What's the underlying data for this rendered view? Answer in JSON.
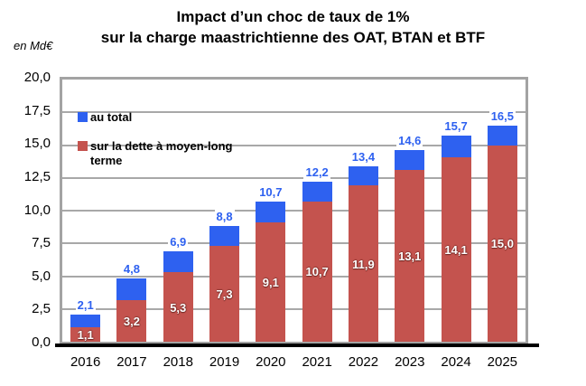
{
  "chart_data": {
    "type": "bar",
    "stacked": true,
    "title_lines": [
      "Impact d’un choc de taux de 1%",
      "sur la charge maastrichtienne des OAT, BTAN et BTF"
    ],
    "unit_label": "en Md€",
    "categories": [
      "2016",
      "2017",
      "2018",
      "2019",
      "2020",
      "2021",
      "2022",
      "2023",
      "2024",
      "2025"
    ],
    "series": [
      {
        "name": "au total",
        "role": "total",
        "color": "#2E61F0",
        "values": [
          2.1,
          4.8,
          6.9,
          8.8,
          10.7,
          12.2,
          13.4,
          14.6,
          15.7,
          16.5
        ],
        "labels": [
          "2,1",
          "4,8",
          "6,9",
          "8,8",
          "10,7",
          "12,2",
          "13,4",
          "14,6",
          "15,7",
          "16,5"
        ]
      },
      {
        "name": "sur la dette à moyen-long terme",
        "role": "component",
        "color": "#C4534E",
        "values": [
          1.1,
          3.2,
          5.3,
          7.3,
          9.1,
          10.7,
          11.9,
          13.1,
          14.1,
          15.0
        ],
        "labels": [
          "1,1",
          "3,2",
          "5,3",
          "7,3",
          "9,1",
          "10,7",
          "11,9",
          "13,1",
          "14,1",
          "15,0"
        ]
      }
    ],
    "ylim": [
      0,
      20
    ],
    "ytick_step": 2.5,
    "ytick_labels": [
      "20,0",
      "17,5",
      "15,0",
      "12,5",
      "10,0",
      "7,5",
      "5,0",
      "2,5",
      "0,0"
    ],
    "grid": true,
    "legend_position": "top-left-inside",
    "colors": {
      "grid": "#A8A8A8",
      "plot_border": "#A3A3A3",
      "axis_line": "#000000",
      "total_label_text": "#2E61F0",
      "component_label_text": "#FFFFFF"
    }
  }
}
